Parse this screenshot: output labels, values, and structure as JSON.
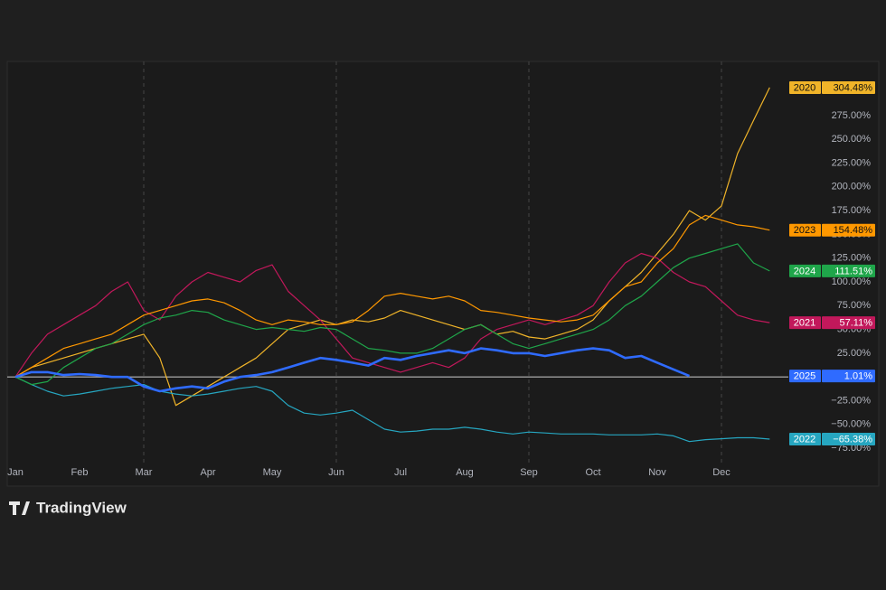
{
  "chart_data": {
    "type": "line",
    "watermark": "TradingView",
    "categories": [
      "Jan",
      null,
      null,
      null,
      "Feb",
      null,
      null,
      null,
      "Mar",
      null,
      null,
      null,
      "Apr",
      null,
      null,
      null,
      "May",
      null,
      null,
      null,
      "Jun",
      null,
      null,
      null,
      "Jul",
      null,
      null,
      null,
      "Aug",
      null,
      null,
      null,
      "Sep",
      null,
      null,
      null,
      "Oct",
      null,
      null,
      null,
      "Nov",
      null,
      null,
      null,
      "Dec",
      null,
      null,
      null
    ],
    "ylim": [
      -93,
      332
    ],
    "yticks": [
      {
        "value": -75,
        "label": "−75.00%"
      },
      {
        "value": -50,
        "label": "−50.00%"
      },
      {
        "value": -25,
        "label": "−25.00%"
      },
      {
        "value": 0,
        "label": "0.00%"
      },
      {
        "value": 25,
        "label": "25.00%"
      },
      {
        "value": 50,
        "label": "50.00%"
      },
      {
        "value": 75,
        "label": "75.00%"
      },
      {
        "value": 100,
        "label": "100.00%"
      },
      {
        "value": 125,
        "label": "125.00%"
      },
      {
        "value": 150,
        "label": "150.00%"
      },
      {
        "value": 175,
        "label": "175.00%"
      },
      {
        "value": 200,
        "label": "200.00%"
      },
      {
        "value": 225,
        "label": "225.00%"
      },
      {
        "value": 250,
        "label": "250.00%"
      },
      {
        "value": 275,
        "label": "275.00%"
      }
    ],
    "series": [
      {
        "name": "2020",
        "color": "#f0b429",
        "values": [
          0,
          10,
          15,
          20,
          25,
          30,
          35,
          40,
          45,
          20,
          -30,
          -20,
          -10,
          0,
          10,
          20,
          35,
          50,
          55,
          60,
          55,
          60,
          58,
          62,
          70,
          65,
          60,
          55,
          50,
          55,
          45,
          48,
          42,
          40,
          45,
          50,
          60,
          80,
          95,
          110,
          130,
          150,
          175,
          165,
          180,
          235,
          270,
          304.48
        ],
        "value_labels": [
          null,
          null,
          null,
          null,
          null,
          null,
          null,
          null,
          null,
          null,
          null,
          null,
          null,
          null,
          null,
          null,
          null,
          null,
          null,
          null,
          null,
          null,
          null,
          null,
          null,
          null,
          null,
          null,
          null,
          null,
          null,
          null,
          null,
          null,
          null,
          null,
          null,
          null,
          null,
          null,
          null,
          null,
          null,
          null,
          null,
          null,
          null,
          "304.48%"
        ]
      },
      {
        "name": "2021",
        "color": "#c2185b",
        "values": [
          0,
          25,
          45,
          55,
          65,
          75,
          90,
          100,
          70,
          60,
          85,
          100,
          110,
          105,
          100,
          112,
          118,
          90,
          75,
          60,
          40,
          20,
          15,
          10,
          5,
          10,
          15,
          10,
          20,
          40,
          50,
          55,
          60,
          55,
          60,
          65,
          75,
          100,
          120,
          130,
          125,
          110,
          100,
          95,
          80,
          65,
          60,
          57.11
        ],
        "value_labels": [
          null,
          null,
          null,
          null,
          null,
          null,
          null,
          null,
          null,
          null,
          null,
          null,
          null,
          null,
          null,
          null,
          null,
          null,
          null,
          null,
          null,
          null,
          null,
          null,
          null,
          null,
          null,
          null,
          null,
          null,
          null,
          null,
          null,
          null,
          null,
          null,
          null,
          null,
          null,
          null,
          null,
          null,
          null,
          null,
          null,
          null,
          null,
          "57.11%"
        ]
      },
      {
        "name": "2022",
        "color": "#26a6c0",
        "values": [
          0,
          -8,
          -15,
          -20,
          -18,
          -15,
          -12,
          -10,
          -8,
          -15,
          -18,
          -20,
          -18,
          -15,
          -12,
          -10,
          -15,
          -30,
          -38,
          -40,
          -38,
          -35,
          -45,
          -55,
          -58,
          -57,
          -55,
          -55,
          -53,
          -55,
          -58,
          -60,
          -58,
          -59,
          -60,
          -60,
          -60,
          -61,
          -61,
          -61,
          -60,
          -62,
          -68,
          -66,
          -65,
          -64,
          -64,
          -65.38
        ],
        "value_labels": [
          null,
          null,
          null,
          null,
          null,
          null,
          null,
          null,
          null,
          null,
          null,
          null,
          null,
          null,
          null,
          null,
          null,
          null,
          null,
          null,
          null,
          null,
          null,
          null,
          null,
          null,
          null,
          null,
          null,
          null,
          null,
          null,
          null,
          null,
          null,
          null,
          null,
          null,
          null,
          null,
          null,
          null,
          null,
          null,
          null,
          null,
          null,
          "−65.38%"
        ]
      },
      {
        "name": "2023",
        "color": "#ff9800",
        "values": [
          0,
          10,
          20,
          30,
          35,
          40,
          45,
          55,
          65,
          70,
          75,
          80,
          82,
          78,
          70,
          60,
          55,
          60,
          58,
          55,
          55,
          58,
          70,
          85,
          88,
          85,
          82,
          85,
          80,
          70,
          68,
          65,
          62,
          60,
          58,
          60,
          65,
          80,
          95,
          100,
          120,
          135,
          160,
          170,
          165,
          160,
          158,
          154.48
        ],
        "value_labels": [
          null,
          null,
          null,
          null,
          null,
          null,
          null,
          null,
          null,
          null,
          null,
          null,
          null,
          null,
          null,
          null,
          null,
          null,
          null,
          null,
          null,
          null,
          null,
          null,
          null,
          null,
          null,
          null,
          null,
          null,
          null,
          null,
          null,
          null,
          null,
          null,
          null,
          null,
          null,
          null,
          null,
          null,
          null,
          null,
          null,
          null,
          null,
          "154.48%"
        ]
      },
      {
        "name": "2024",
        "color": "#1fa64a",
        "values": [
          0,
          -8,
          -5,
          10,
          20,
          30,
          35,
          45,
          55,
          62,
          65,
          70,
          68,
          60,
          55,
          50,
          52,
          50,
          48,
          52,
          50,
          40,
          30,
          28,
          25,
          25,
          30,
          40,
          50,
          55,
          45,
          35,
          30,
          35,
          40,
          45,
          50,
          60,
          75,
          85,
          100,
          115,
          125,
          130,
          135,
          140,
          120,
          111.51
        ],
        "value_labels": [
          null,
          null,
          null,
          null,
          null,
          null,
          null,
          null,
          null,
          null,
          null,
          null,
          null,
          null,
          null,
          null,
          null,
          null,
          null,
          null,
          null,
          null,
          null,
          null,
          null,
          null,
          null,
          null,
          null,
          null,
          null,
          null,
          null,
          null,
          null,
          null,
          null,
          null,
          null,
          null,
          null,
          null,
          null,
          null,
          null,
          null,
          null,
          "111.51%"
        ]
      },
      {
        "name": "2025",
        "color": "#2f6bff",
        "values": [
          0,
          5,
          5,
          2,
          3,
          2,
          0,
          0,
          -10,
          -15,
          -12,
          -10,
          -12,
          -5,
          0,
          2,
          5,
          10,
          15,
          20,
          18,
          15,
          12,
          20,
          18,
          22,
          25,
          28,
          25,
          30,
          28,
          25,
          25,
          22,
          25,
          28,
          30,
          28,
          20,
          22,
          15,
          8,
          1.01,
          null,
          null,
          null,
          null,
          null
        ],
        "value_labels": [
          null,
          null,
          null,
          null,
          null,
          null,
          null,
          null,
          null,
          null,
          null,
          null,
          null,
          null,
          null,
          null,
          null,
          null,
          null,
          null,
          null,
          null,
          null,
          null,
          null,
          null,
          null,
          null,
          null,
          null,
          null,
          null,
          null,
          null,
          null,
          null,
          null,
          null,
          null,
          null,
          null,
          null,
          "1.01%",
          null,
          null,
          null,
          null,
          null
        ]
      }
    ]
  }
}
